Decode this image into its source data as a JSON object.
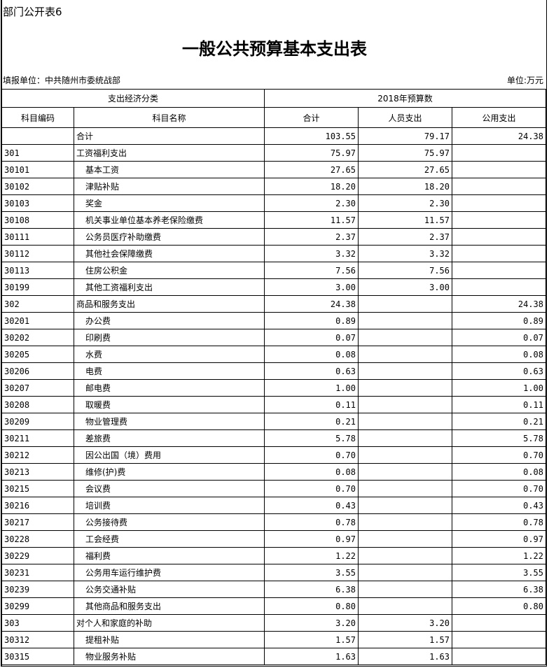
{
  "form_no": "部门公开表6",
  "title": "一般公共预算基本支出表",
  "unit_left": "填报单位：中共随州市委统战部",
  "unit_right": "单位:万元",
  "header": {
    "group1": "支出经济分类",
    "group2": "2018年预算数",
    "code": "科目编码",
    "name": "科目名称",
    "total": "合计",
    "personnel": "人员支出",
    "public": "公用支出"
  },
  "rows": [
    {
      "code": "",
      "name": "合计",
      "total": "103.55",
      "personnel": "79.17",
      "public": "24.38",
      "level": 0
    },
    {
      "code": "301",
      "name": "工资福利支出",
      "total": "75.97",
      "personnel": "75.97",
      "public": "",
      "level": 0
    },
    {
      "code": "30101",
      "name": "基本工资",
      "total": "27.65",
      "personnel": "27.65",
      "public": "",
      "level": 1
    },
    {
      "code": "30102",
      "name": "津贴补贴",
      "total": "18.20",
      "personnel": "18.20",
      "public": "",
      "level": 1
    },
    {
      "code": "30103",
      "name": "奖金",
      "total": "2.30",
      "personnel": "2.30",
      "public": "",
      "level": 1
    },
    {
      "code": "30108",
      "name": "机关事业单位基本养老保险缴费",
      "total": "11.57",
      "personnel": "11.57",
      "public": "",
      "level": 1
    },
    {
      "code": "30111",
      "name": "公务员医疗补助缴费",
      "total": "2.37",
      "personnel": "2.37",
      "public": "",
      "level": 1
    },
    {
      "code": "30112",
      "name": "其他社会保障缴费",
      "total": "3.32",
      "personnel": "3.32",
      "public": "",
      "level": 1
    },
    {
      "code": "30113",
      "name": "住房公积金",
      "total": "7.56",
      "personnel": "7.56",
      "public": "",
      "level": 1
    },
    {
      "code": "30199",
      "name": "其他工资福利支出",
      "total": "3.00",
      "personnel": "3.00",
      "public": "",
      "level": 1
    },
    {
      "code": "302",
      "name": "商品和服务支出",
      "total": "24.38",
      "personnel": "",
      "public": "24.38",
      "level": 0
    },
    {
      "code": "30201",
      "name": "办公费",
      "total": "0.89",
      "personnel": "",
      "public": "0.89",
      "level": 1
    },
    {
      "code": "30202",
      "name": "印刷费",
      "total": "0.07",
      "personnel": "",
      "public": "0.07",
      "level": 1
    },
    {
      "code": "30205",
      "name": "水费",
      "total": "0.08",
      "personnel": "",
      "public": "0.08",
      "level": 1
    },
    {
      "code": "30206",
      "name": "电费",
      "total": "0.63",
      "personnel": "",
      "public": "0.63",
      "level": 1
    },
    {
      "code": "30207",
      "name": "邮电费",
      "total": "1.00",
      "personnel": "",
      "public": "1.00",
      "level": 1
    },
    {
      "code": "30208",
      "name": "取暖费",
      "total": "0.11",
      "personnel": "",
      "public": "0.11",
      "level": 1
    },
    {
      "code": "30209",
      "name": "物业管理费",
      "total": "0.21",
      "personnel": "",
      "public": "0.21",
      "level": 1
    },
    {
      "code": "30211",
      "name": "差旅费",
      "total": "5.78",
      "personnel": "",
      "public": "5.78",
      "level": 1
    },
    {
      "code": "30212",
      "name": "因公出国（境）费用",
      "total": "0.70",
      "personnel": "",
      "public": "0.70",
      "level": 1
    },
    {
      "code": "30213",
      "name": "维修(护)费",
      "total": "0.08",
      "personnel": "",
      "public": "0.08",
      "level": 1
    },
    {
      "code": "30215",
      "name": "会议费",
      "total": "0.70",
      "personnel": "",
      "public": "0.70",
      "level": 1
    },
    {
      "code": "30216",
      "name": "培训费",
      "total": "0.43",
      "personnel": "",
      "public": "0.43",
      "level": 1
    },
    {
      "code": "30217",
      "name": "公务接待费",
      "total": "0.78",
      "personnel": "",
      "public": "0.78",
      "level": 1
    },
    {
      "code": "30228",
      "name": "工会经费",
      "total": "0.97",
      "personnel": "",
      "public": "0.97",
      "level": 1
    },
    {
      "code": "30229",
      "name": "福利费",
      "total": "1.22",
      "personnel": "",
      "public": "1.22",
      "level": 1
    },
    {
      "code": "30231",
      "name": "公务用车运行维护费",
      "total": "3.55",
      "personnel": "",
      "public": "3.55",
      "level": 1
    },
    {
      "code": "30239",
      "name": "公务交通补贴",
      "total": "6.38",
      "personnel": "",
      "public": "6.38",
      "level": 1
    },
    {
      "code": "30299",
      "name": "其他商品和服务支出",
      "total": "0.80",
      "personnel": "",
      "public": "0.80",
      "level": 1
    },
    {
      "code": "303",
      "name": "对个人和家庭的补助",
      "total": "3.20",
      "personnel": "3.20",
      "public": "",
      "level": 0
    },
    {
      "code": "30312",
      "name": "提租补贴",
      "total": "1.57",
      "personnel": "1.57",
      "public": "",
      "level": 1
    },
    {
      "code": "30315",
      "name": "物业服务补贴",
      "total": "1.63",
      "personnel": "1.63",
      "public": "",
      "level": 1
    }
  ]
}
